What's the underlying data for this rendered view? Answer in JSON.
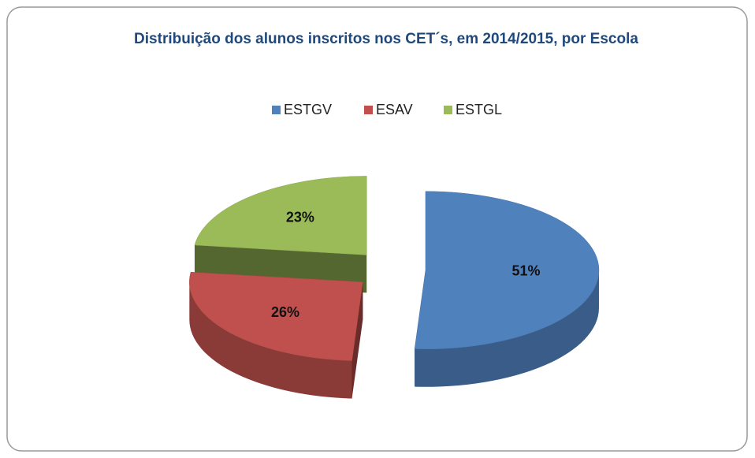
{
  "chart_data": {
    "type": "pie",
    "title": "Distribuição dos alunos inscritos nos CET´s, em 2014/2015, por Escola",
    "categories": [
      "ESTGV",
      "ESAV",
      "ESTGL"
    ],
    "values": [
      51,
      26,
      23
    ],
    "value_labels": [
      "51%",
      "26%",
      "23%"
    ],
    "colors": [
      "#4f81bd",
      "#c0504d",
      "#9bbb59"
    ],
    "legend": "top"
  }
}
